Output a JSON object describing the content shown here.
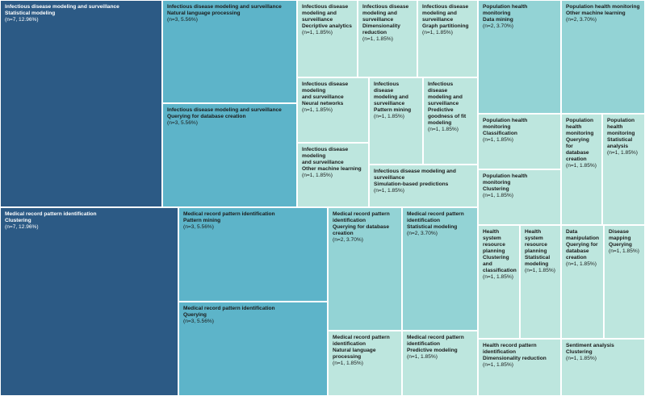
{
  "chart_data": {
    "type": "treemap",
    "title": "",
    "colors": {
      "level1": "#2c5a85",
      "level2": "#5db4c9",
      "level3": "#93d3d5",
      "level4": "#bde6de",
      "text_dark_bg": "#ffffff",
      "text_light_bg": "#1a1a1a",
      "border": "#ffffff"
    },
    "groups": [
      {
        "name": "Infectious disease modeling and surveillance",
        "items": [
          {
            "id": "ids-statistical-modeling",
            "lines": [
              "Infectious disease modeling and surveillance",
              "Statistical modeling"
            ],
            "count_text": "(n=7, 12.96%)",
            "n": 7,
            "percent": 12.96
          },
          {
            "id": "ids-nlp",
            "lines": [
              "Infectious disease modeling and surveillance",
              "Natural language processing"
            ],
            "count_text": "(n=3, 5.56%)",
            "n": 3,
            "percent": 5.56
          },
          {
            "id": "ids-querying",
            "lines": [
              "Infectious disease modeling and surveillance",
              "Querying for database creation"
            ],
            "count_text": "(n=3, 5.56%)",
            "n": 3,
            "percent": 5.56
          },
          {
            "id": "ids-descriptive",
            "lines": [
              "Infectious disease",
              "modeling and",
              "surveillance",
              "Decriptive analytics"
            ],
            "count_text": "(n=1, 1.85%)",
            "n": 1,
            "percent": 1.85
          },
          {
            "id": "ids-dimensionality",
            "lines": [
              "Infectious disease",
              "modeling and",
              "surveillance",
              "Dimensionality",
              "reduction"
            ],
            "count_text": "(n=1, 1.85%)",
            "n": 1,
            "percent": 1.85
          },
          {
            "id": "ids-graph",
            "lines": [
              "Infectious disease",
              "modeling and",
              "surveillance",
              "Graph partitioning"
            ],
            "count_text": "(n=1, 1.85%)",
            "n": 1,
            "percent": 1.85
          },
          {
            "id": "ids-neural",
            "lines": [
              "Infectious disease modeling",
              "and surveillance",
              "Neural networks"
            ],
            "count_text": "(n=1, 1.85%)",
            "n": 1,
            "percent": 1.85
          },
          {
            "id": "ids-pattern",
            "lines": [
              "Infectious disease",
              "modeling and",
              "surveillance",
              "Pattern mining"
            ],
            "count_text": "(n=1, 1.85%)",
            "n": 1,
            "percent": 1.85
          },
          {
            "id": "ids-predictive-goodness",
            "lines": [
              "Infectious disease",
              "modeling and",
              "surveillance",
              "Predictive",
              "goodness of fit",
              "modeling"
            ],
            "count_text": "(n=1, 1.85%)",
            "n": 1,
            "percent": 1.85
          },
          {
            "id": "ids-other-ml",
            "lines": [
              "Infectious disease modeling",
              "and surveillance",
              "Other machine learning"
            ],
            "count_text": "(n=1, 1.85%)",
            "n": 1,
            "percent": 1.85
          },
          {
            "id": "ids-simulation",
            "lines": [
              "Infectious disease modeling and",
              "surveillance",
              "Simulation-based predictions"
            ],
            "count_text": "(n=1, 1.85%)",
            "n": 1,
            "percent": 1.85
          }
        ]
      },
      {
        "name": "Medical record pattern identification",
        "items": [
          {
            "id": "mrp-clustering",
            "lines": [
              "Medical record pattern identification",
              "Clustering"
            ],
            "count_text": "(n=7, 12.96%)",
            "n": 7,
            "percent": 12.96
          },
          {
            "id": "mrp-pattern-mining",
            "lines": [
              "Medical record pattern identification",
              "Pattern mining"
            ],
            "count_text": "(n=3, 5.56%)",
            "n": 3,
            "percent": 5.56
          },
          {
            "id": "mrp-querying",
            "lines": [
              "Medical record pattern identification",
              "Querying"
            ],
            "count_text": "(n=3, 5.56%)",
            "n": 3,
            "percent": 5.56
          },
          {
            "id": "mrp-querying-db",
            "lines": [
              "Medical record pattern",
              "identification",
              "Querying for database",
              "creation"
            ],
            "count_text": "(n=2, 3.70%)",
            "n": 2,
            "percent": 3.7
          },
          {
            "id": "mrp-statistical",
            "lines": [
              "Medical record pattern",
              "identification",
              "Statistical modeling"
            ],
            "count_text": "(n=2, 3.70%)",
            "n": 2,
            "percent": 3.7
          },
          {
            "id": "mrp-nlp",
            "lines": [
              "Medical record pattern",
              "identification",
              "Natural language processing"
            ],
            "count_text": "(n=1, 1.85%)",
            "n": 1,
            "percent": 1.85
          },
          {
            "id": "mrp-predictive",
            "lines": [
              "Medical record pattern",
              "identification",
              "Predictive modeling"
            ],
            "count_text": "(n=1, 1.85%)",
            "n": 1,
            "percent": 1.85
          }
        ]
      },
      {
        "name": "Population health monitoring",
        "items": [
          {
            "id": "phm-data-mining",
            "lines": [
              "Population health monitoring",
              "Data mining"
            ],
            "count_text": "(n=2, 3.70%)",
            "n": 2,
            "percent": 3.7
          },
          {
            "id": "phm-other-ml",
            "lines": [
              "Population health monitoring",
              "Other machine learning"
            ],
            "count_text": "(n=2, 3.70%)",
            "n": 2,
            "percent": 3.7
          },
          {
            "id": "phm-classification",
            "lines": [
              "Population health monitoring",
              "Classification"
            ],
            "count_text": "(n=1, 1.85%)",
            "n": 1,
            "percent": 1.85
          },
          {
            "id": "phm-querying",
            "lines": [
              "Population",
              "health",
              "monitoring",
              "Querying for",
              "database",
              "creation"
            ],
            "count_text": "(n=1, 1.85%)",
            "n": 1,
            "percent": 1.85
          },
          {
            "id": "phm-statistical",
            "lines": [
              "Population",
              "health",
              "monitoring",
              "Statistical",
              "analysis"
            ],
            "count_text": "(n=1, 1.85%)",
            "n": 1,
            "percent": 1.85
          },
          {
            "id": "phm-clustering",
            "lines": [
              "Population health monitoring",
              "Clustering"
            ],
            "count_text": "(n=1, 1.85%)",
            "n": 1,
            "percent": 1.85
          }
        ]
      },
      {
        "name": "Other",
        "items": [
          {
            "id": "hsr-clustering",
            "lines": [
              "Health system",
              "resource",
              "planning",
              "Clustering",
              "and",
              "classification"
            ],
            "count_text": "(n=1, 1.85%)",
            "n": 1,
            "percent": 1.85
          },
          {
            "id": "hsr-statistical",
            "lines": [
              "Health system",
              "resource",
              "planning",
              "Statistical",
              "modeling"
            ],
            "count_text": "(n=1, 1.85%)",
            "n": 1,
            "percent": 1.85
          },
          {
            "id": "dm-querying",
            "lines": [
              "Data",
              "manipulation",
              "Querying for",
              "database",
              "creation"
            ],
            "count_text": "(n=1, 1.85%)",
            "n": 1,
            "percent": 1.85
          },
          {
            "id": "dmap-querying",
            "lines": [
              "Disease",
              "mapping",
              "Querying"
            ],
            "count_text": "(n=1, 1.85%)",
            "n": 1,
            "percent": 1.85
          },
          {
            "id": "hrp-dimensionality",
            "lines": [
              "Health record pattern",
              "identification",
              "Dimensionality reduction"
            ],
            "count_text": "(n=1, 1.85%)",
            "n": 1,
            "percent": 1.85
          },
          {
            "id": "sa-clustering",
            "lines": [
              "Sentiment analysis",
              "Clustering"
            ],
            "count_text": "(n=1, 1.85%)",
            "n": 1,
            "percent": 1.85
          }
        ]
      }
    ]
  }
}
